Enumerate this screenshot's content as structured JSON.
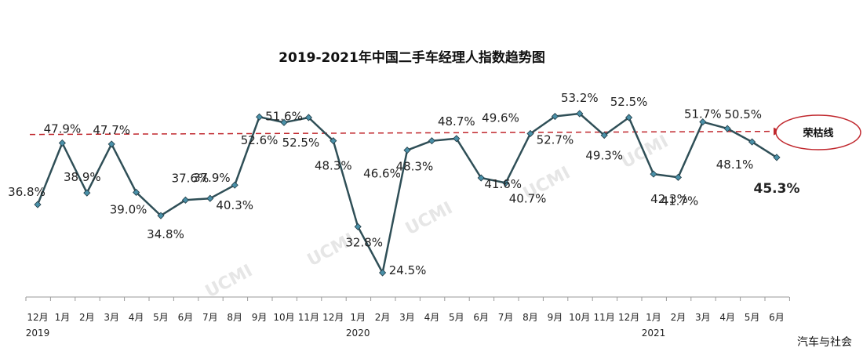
{
  "chart_data": {
    "type": "line",
    "title": "2019-2021年中国二手车经理人指数趋势图",
    "xlabel": "",
    "ylabel": "",
    "ylim": [
      20,
      58
    ],
    "grid": false,
    "categories": [
      "12月",
      "1月",
      "2月",
      "3月",
      "4月",
      "5月",
      "6月",
      "7月",
      "8月",
      "9月",
      "10月",
      "11月",
      "12月",
      "1月",
      "2月",
      "3月",
      "4月",
      "5月",
      "6月",
      "7月",
      "8月",
      "9月",
      "10月",
      "11月",
      "12月",
      "1月",
      "2月",
      "3月",
      "4月",
      "5月",
      "6月"
    ],
    "years": [
      {
        "label": "2019",
        "index": 0
      },
      {
        "label": "2020",
        "index": 13
      },
      {
        "label": "2021",
        "index": 25
      }
    ],
    "series": [
      {
        "values": [
          36.8,
          47.9,
          38.9,
          47.7,
          39.0,
          34.8,
          37.6,
          37.9,
          40.3,
          52.6,
          51.6,
          52.5,
          48.3,
          32.8,
          24.5,
          46.6,
          48.3,
          48.7,
          41.6,
          40.7,
          49.6,
          52.7,
          53.2,
          49.3,
          52.5,
          42.3,
          41.7,
          51.7,
          50.5,
          48.1,
          45.3
        ],
        "labels": [
          "36.8%",
          "47.9%",
          "38.9%",
          "47.7%",
          "39.0%",
          "34.8%",
          "37.6%",
          "37.9%",
          "40.3%",
          "52.6%",
          "51.6%",
          "52.5%",
          "48.3%",
          "32.8%",
          "24.5%",
          "46.6%",
          "48.3%",
          "48.7%",
          "41.6%",
          "40.7%",
          "49.6%",
          "52.7%",
          "53.2%",
          "49.3%",
          "52.5%",
          "42.3%",
          "41.7%",
          "51.7%",
          "50.5%",
          "48.1%",
          "45.3%"
        ],
        "color": "#2f4f57",
        "marker_color": "#4a90a8"
      }
    ],
    "reference_line": {
      "value": 50,
      "label": "荣枯线",
      "color": "#c0272d"
    }
  },
  "watermark": "UCMI",
  "source": "汽车与社会"
}
